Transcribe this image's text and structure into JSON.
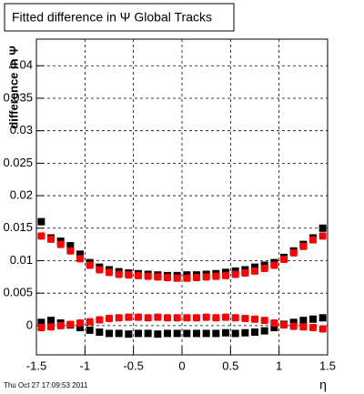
{
  "chart_data": {
    "type": "scatter",
    "title": "Fitted difference in  Ψ   Global Tracks",
    "y_label": "difference in Ψ",
    "x_label": "η",
    "footer": "Thu Oct 27 17:09:53 2011",
    "xlim": [
      -1.5,
      1.5
    ],
    "xticks": [
      -1.5,
      -1,
      -0.5,
      0,
      0.5,
      1,
      1.5
    ],
    "ylim": [
      -0.0045,
      0.0441
    ],
    "yticks": [
      0,
      0.005,
      0.01,
      0.015,
      0.02,
      0.025,
      0.03,
      0.035,
      0.04
    ],
    "grid": true,
    "x": [
      -1.45,
      -1.35,
      -1.25,
      -1.15,
      -1.05,
      -0.95,
      -0.85,
      -0.75,
      -0.65,
      -0.55,
      -0.45,
      -0.35,
      -0.25,
      -0.15,
      -0.05,
      0.05,
      0.15,
      0.25,
      0.35,
      0.45,
      0.55,
      0.65,
      0.75,
      0.85,
      0.95,
      1.05,
      1.15,
      1.25,
      1.35,
      1.45
    ],
    "series": [
      {
        "color": "#000000",
        "values": [
          0.016,
          0.0135,
          0.013,
          0.0123,
          0.011,
          0.0097,
          0.009,
          0.0086,
          0.0083,
          0.0081,
          0.008,
          0.0079,
          0.0078,
          0.0077,
          0.0077,
          0.0078,
          0.0078,
          0.0079,
          0.008,
          0.0082,
          0.0084,
          0.0086,
          0.009,
          0.0093,
          0.0097,
          0.0105,
          0.0115,
          0.0125,
          0.0135,
          0.015
        ]
      },
      {
        "color": "#000000",
        "values": [
          0.0005,
          0.0008,
          0.0004,
          0.0001,
          -0.0003,
          -0.0007,
          -0.001,
          -0.0012,
          -0.0012,
          -0.0013,
          -0.0012,
          -0.0012,
          -0.0013,
          -0.0012,
          -0.0012,
          -0.0012,
          -0.0012,
          -0.0012,
          -0.0012,
          -0.0011,
          -0.0012,
          -0.0011,
          -0.001,
          -0.0008,
          -0.0003,
          0.0002,
          0.0005,
          0.0008,
          0.001,
          0.0012
        ]
      },
      {
        "color": "#ff0000",
        "values": [
          0.0138,
          0.0133,
          0.0125,
          0.0115,
          0.0103,
          0.0093,
          0.0086,
          0.0082,
          0.0079,
          0.0078,
          0.0077,
          0.0076,
          0.0075,
          0.0074,
          0.0073,
          0.0073,
          0.0074,
          0.0075,
          0.0076,
          0.0077,
          0.0079,
          0.0081,
          0.0084,
          0.0088,
          0.0093,
          0.0102,
          0.0112,
          0.0122,
          0.0132,
          0.0138
        ]
      },
      {
        "color": "#ff0000",
        "values": [
          -0.0003,
          -0.0002,
          0,
          0.0002,
          0.0004,
          0.0006,
          0.0009,
          0.0011,
          0.0012,
          0.0013,
          0.0013,
          0.0012,
          0.0013,
          0.0012,
          0.0012,
          0.0012,
          0.0012,
          0.0013,
          0.0012,
          0.0013,
          0.0012,
          0.0011,
          0.001,
          0.0008,
          0.0004,
          0.0001,
          -0.0001,
          -0.0002,
          -0.0003,
          -0.0005
        ]
      }
    ]
  }
}
